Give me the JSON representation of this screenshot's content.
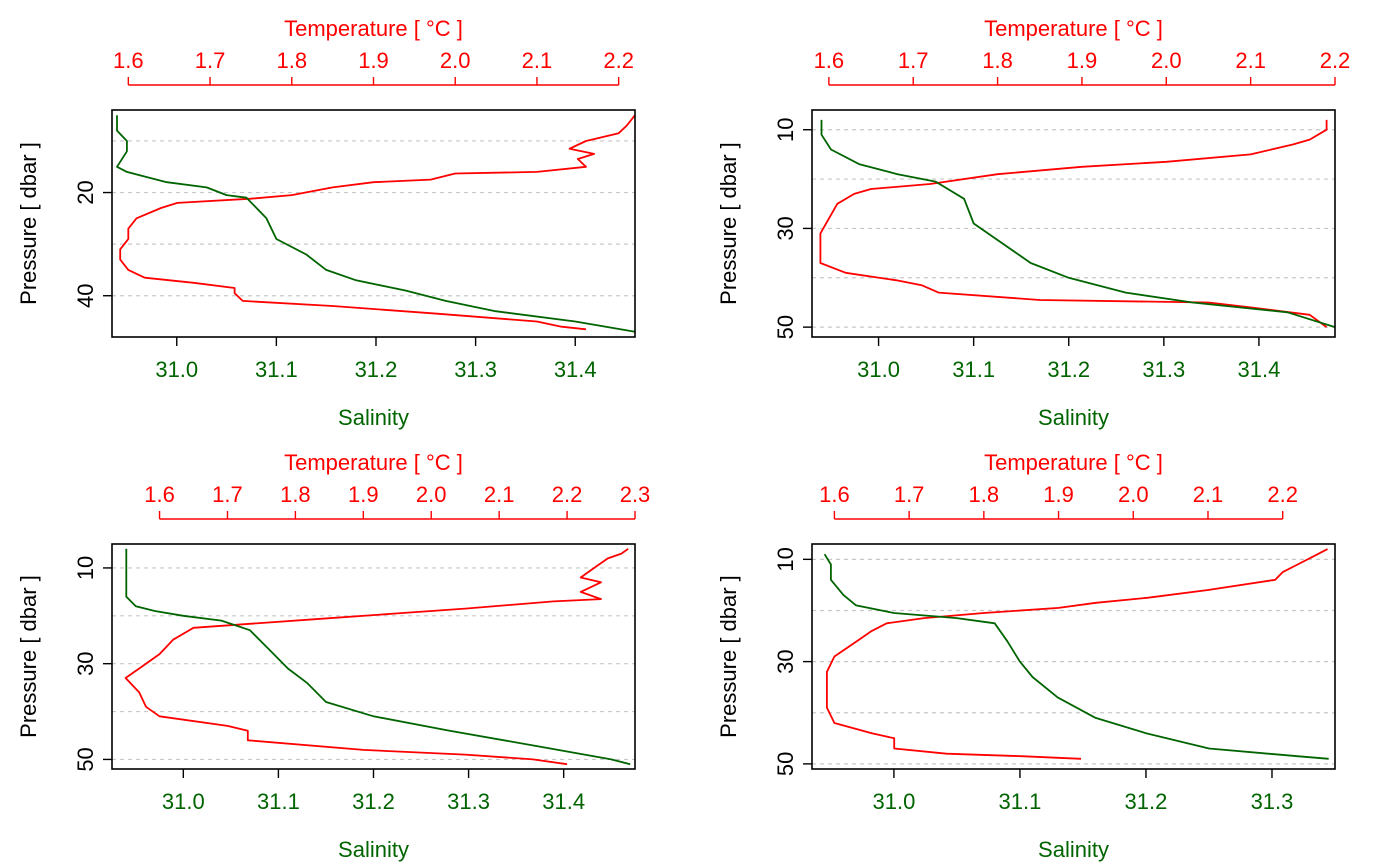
{
  "colors": {
    "temperature": "#ff0000",
    "salinity": "#006400",
    "grid": "#c8c8c8",
    "axis": "#000000"
  },
  "chart_data": [
    {
      "type": "line",
      "title": "",
      "temperature_label": "Temperature [ °C ]",
      "salinity_label": "Salinity",
      "pressure_label": "Pressure [ dbar ]",
      "temp_lim": [
        1.58,
        2.22
      ],
      "temp_ticks": [
        1.6,
        1.7,
        1.8,
        1.9,
        2.0,
        2.1,
        2.2
      ],
      "temp_tick_labels": [
        "1.6",
        "1.7",
        "1.8",
        "1.9",
        "2.0",
        "2.1",
        "2.2"
      ],
      "sal_lim": [
        30.935,
        31.46
      ],
      "sal_ticks": [
        31.0,
        31.1,
        31.2,
        31.3,
        31.4
      ],
      "sal_tick_labels": [
        "31.0",
        "31.1",
        "31.2",
        "31.3",
        "31.4"
      ],
      "p_lim": [
        4,
        48
      ],
      "p_ticks": [
        20,
        40
      ],
      "p_tick_labels": [
        "20",
        "40"
      ],
      "p_grid": [
        10,
        20,
        30,
        40
      ],
      "grid": true,
      "series": [
        {
          "quantity": "temperature",
          "points": [
            [
              2.22,
              5
            ],
            [
              2.21,
              7
            ],
            [
              2.2,
              8.5
            ],
            [
              2.16,
              10
            ],
            [
              2.14,
              11.5
            ],
            [
              2.17,
              12.5
            ],
            [
              2.15,
              13.5
            ],
            [
              2.16,
              15
            ],
            [
              2.1,
              16
            ],
            [
              2.0,
              16.3
            ],
            [
              1.97,
              17.5
            ],
            [
              1.9,
              18
            ],
            [
              1.85,
              19
            ],
            [
              1.8,
              20.5
            ],
            [
              1.75,
              21.2
            ],
            [
              1.66,
              22
            ],
            [
              1.64,
              23
            ],
            [
              1.61,
              25
            ],
            [
              1.6,
              27
            ],
            [
              1.6,
              29
            ],
            [
              1.59,
              31
            ],
            [
              1.59,
              33
            ],
            [
              1.6,
              35
            ],
            [
              1.62,
              36.5
            ],
            [
              1.68,
              37.5
            ],
            [
              1.73,
              38.5
            ],
            [
              1.73,
              39.5
            ],
            [
              1.74,
              41
            ],
            [
              1.85,
              42
            ],
            [
              1.98,
              43.5
            ],
            [
              2.1,
              45
            ],
            [
              2.13,
              46
            ],
            [
              2.16,
              46.5
            ]
          ]
        },
        {
          "quantity": "salinity",
          "points": [
            [
              30.94,
              5
            ],
            [
              30.94,
              8
            ],
            [
              30.95,
              10
            ],
            [
              30.95,
              12
            ],
            [
              30.94,
              15
            ],
            [
              30.95,
              16
            ],
            [
              30.97,
              17
            ],
            [
              30.99,
              18
            ],
            [
              31.03,
              19
            ],
            [
              31.05,
              20.5
            ],
            [
              31.07,
              21
            ],
            [
              31.09,
              25
            ],
            [
              31.1,
              29
            ],
            [
              31.13,
              32
            ],
            [
              31.15,
              35
            ],
            [
              31.18,
              37
            ],
            [
              31.23,
              39
            ],
            [
              31.27,
              41
            ],
            [
              31.32,
              43
            ],
            [
              31.4,
              45
            ],
            [
              31.46,
              47
            ]
          ]
        }
      ]
    },
    {
      "type": "line",
      "title": "",
      "temperature_label": "Temperature [ °C ]",
      "salinity_label": "Salinity",
      "pressure_label": "Pressure [ dbar ]",
      "temp_lim": [
        1.58,
        2.2
      ],
      "temp_ticks": [
        1.6,
        1.7,
        1.8,
        1.9,
        2.0,
        2.1,
        2.2
      ],
      "temp_tick_labels": [
        "1.6",
        "1.7",
        "1.8",
        "1.9",
        "2.0",
        "2.1",
        "2.2"
      ],
      "sal_lim": [
        30.93,
        31.48
      ],
      "sal_ticks": [
        31.0,
        31.1,
        31.2,
        31.3,
        31.4
      ],
      "sal_tick_labels": [
        "31.0",
        "31.1",
        "31.2",
        "31.3",
        "31.4"
      ],
      "p_lim": [
        6,
        52
      ],
      "p_ticks": [
        10,
        30,
        50
      ],
      "p_tick_labels": [
        "10",
        "30",
        "50"
      ],
      "p_grid": [
        10,
        20,
        30,
        40,
        50
      ],
      "grid": true,
      "series": [
        {
          "quantity": "temperature",
          "points": [
            [
              2.19,
              8
            ],
            [
              2.19,
              10
            ],
            [
              2.17,
              12
            ],
            [
              2.15,
              13
            ],
            [
              2.1,
              15
            ],
            [
              2.0,
              16.5
            ],
            [
              1.9,
              17.5
            ],
            [
              1.8,
              19
            ],
            [
              1.72,
              21
            ],
            [
              1.65,
              22
            ],
            [
              1.63,
              23
            ],
            [
              1.61,
              25
            ],
            [
              1.6,
              28
            ],
            [
              1.59,
              31
            ],
            [
              1.59,
              34
            ],
            [
              1.59,
              37
            ],
            [
              1.62,
              39
            ],
            [
              1.68,
              40.5
            ],
            [
              1.71,
              41.5
            ],
            [
              1.73,
              43
            ],
            [
              1.85,
              44.5
            ],
            [
              2.05,
              45
            ],
            [
              2.1,
              46
            ],
            [
              2.17,
              47.5
            ],
            [
              2.19,
              50
            ]
          ]
        },
        {
          "quantity": "salinity",
          "points": [
            [
              30.94,
              8
            ],
            [
              30.94,
              11
            ],
            [
              30.95,
              14
            ],
            [
              30.98,
              17
            ],
            [
              31.02,
              19
            ],
            [
              31.06,
              20.5
            ],
            [
              31.09,
              24
            ],
            [
              31.1,
              29
            ],
            [
              31.13,
              33
            ],
            [
              31.16,
              37
            ],
            [
              31.2,
              40
            ],
            [
              31.26,
              43
            ],
            [
              31.33,
              45
            ],
            [
              31.43,
              47
            ],
            [
              31.48,
              50
            ]
          ]
        }
      ]
    },
    {
      "type": "line",
      "title": "",
      "temperature_label": "Temperature [ °C ]",
      "salinity_label": "Salinity",
      "pressure_label": "Pressure [ dbar ]",
      "temp_lim": [
        1.53,
        2.3
      ],
      "temp_ticks": [
        1.6,
        1.7,
        1.8,
        1.9,
        2.0,
        2.1,
        2.2,
        2.3
      ],
      "temp_tick_labels": [
        "1.6",
        "1.7",
        "1.8",
        "1.9",
        "2.0",
        "2.1",
        "2.2",
        "2.3"
      ],
      "sal_lim": [
        30.925,
        31.475
      ],
      "sal_ticks": [
        31.0,
        31.1,
        31.2,
        31.3,
        31.4
      ],
      "sal_tick_labels": [
        "31.0",
        "31.1",
        "31.2",
        "31.3",
        "31.4"
      ],
      "p_lim": [
        5,
        52
      ],
      "p_ticks": [
        10,
        30,
        50
      ],
      "p_tick_labels": [
        "10",
        "30",
        "50"
      ],
      "p_grid": [
        10,
        20,
        30,
        40,
        50
      ],
      "grid": true,
      "series": [
        {
          "quantity": "temperature",
          "points": [
            [
              2.29,
              6
            ],
            [
              2.28,
              7
            ],
            [
              2.26,
              8
            ],
            [
              2.24,
              10
            ],
            [
              2.22,
              12
            ],
            [
              2.25,
              13
            ],
            [
              2.22,
              15
            ],
            [
              2.25,
              16.5
            ],
            [
              2.18,
              17
            ],
            [
              2.05,
              18.5
            ],
            [
              1.95,
              19.5
            ],
            [
              1.85,
              20.5
            ],
            [
              1.75,
              21.5
            ],
            [
              1.65,
              22.5
            ],
            [
              1.62,
              25
            ],
            [
              1.6,
              28
            ],
            [
              1.57,
              31
            ],
            [
              1.55,
              33
            ],
            [
              1.57,
              36
            ],
            [
              1.58,
              39
            ],
            [
              1.6,
              41
            ],
            [
              1.7,
              43
            ],
            [
              1.73,
              44
            ],
            [
              1.73,
              46
            ],
            [
              1.9,
              48
            ],
            [
              2.05,
              49
            ],
            [
              2.15,
              50
            ],
            [
              2.2,
              51
            ]
          ]
        },
        {
          "quantity": "salinity",
          "points": [
            [
              30.94,
              6
            ],
            [
              30.94,
              9
            ],
            [
              30.94,
              13
            ],
            [
              30.94,
              16
            ],
            [
              30.95,
              18
            ],
            [
              30.97,
              19
            ],
            [
              31.0,
              20
            ],
            [
              31.04,
              21
            ],
            [
              31.07,
              23
            ],
            [
              31.09,
              27
            ],
            [
              31.11,
              31
            ],
            [
              31.13,
              34
            ],
            [
              31.15,
              38
            ],
            [
              31.2,
              41
            ],
            [
              31.28,
              44
            ],
            [
              31.38,
              47.5
            ],
            [
              31.45,
              50
            ],
            [
              31.47,
              51
            ]
          ]
        }
      ]
    },
    {
      "type": "line",
      "title": "",
      "temperature_label": "Temperature [ °C ]",
      "salinity_label": "Salinity",
      "pressure_label": "Pressure [ dbar ]",
      "temp_lim": [
        1.57,
        2.27
      ],
      "temp_ticks": [
        1.6,
        1.7,
        1.8,
        1.9,
        2.0,
        2.1,
        2.2
      ],
      "temp_tick_labels": [
        "1.6",
        "1.7",
        "1.8",
        "1.9",
        "2.0",
        "2.1",
        "2.2"
      ],
      "sal_lim": [
        30.935,
        31.35
      ],
      "sal_ticks": [
        31.0,
        31.1,
        31.2,
        31.3
      ],
      "sal_tick_labels": [
        "31.0",
        "31.1",
        "31.2",
        "31.3"
      ],
      "p_lim": [
        7,
        51
      ],
      "p_ticks": [
        10,
        30,
        50
      ],
      "p_tick_labels": [
        "10",
        "30",
        "50"
      ],
      "p_grid": [
        10,
        20,
        30,
        40,
        50
      ],
      "grid": true,
      "series": [
        {
          "quantity": "temperature",
          "points": [
            [
              2.26,
              8
            ],
            [
              2.24,
              9.5
            ],
            [
              2.22,
              11
            ],
            [
              2.2,
              12.5
            ],
            [
              2.19,
              14
            ],
            [
              2.1,
              16
            ],
            [
              2.02,
              17.5
            ],
            [
              1.95,
              18.5
            ],
            [
              1.9,
              19.5
            ],
            [
              1.8,
              20.5
            ],
            [
              1.72,
              21.5
            ],
            [
              1.67,
              22.5
            ],
            [
              1.65,
              24
            ],
            [
              1.63,
              26
            ],
            [
              1.6,
              29
            ],
            [
              1.59,
              32
            ],
            [
              1.59,
              36
            ],
            [
              1.59,
              39
            ],
            [
              1.6,
              42
            ],
            [
              1.65,
              44
            ],
            [
              1.68,
              45
            ],
            [
              1.68,
              47
            ],
            [
              1.75,
              48
            ],
            [
              1.85,
              48.5
            ],
            [
              1.93,
              49
            ]
          ]
        },
        {
          "quantity": "salinity",
          "points": [
            [
              30.945,
              9
            ],
            [
              30.95,
              11
            ],
            [
              30.95,
              14
            ],
            [
              30.96,
              17
            ],
            [
              30.97,
              19
            ],
            [
              31.0,
              20.5
            ],
            [
              31.05,
              21.5
            ],
            [
              31.08,
              22.5
            ],
            [
              31.09,
              26
            ],
            [
              31.1,
              30
            ],
            [
              31.11,
              33
            ],
            [
              31.13,
              37
            ],
            [
              31.16,
              41
            ],
            [
              31.2,
              44
            ],
            [
              31.25,
              47
            ],
            [
              31.32,
              48.5
            ],
            [
              31.345,
              49
            ]
          ]
        }
      ]
    }
  ]
}
